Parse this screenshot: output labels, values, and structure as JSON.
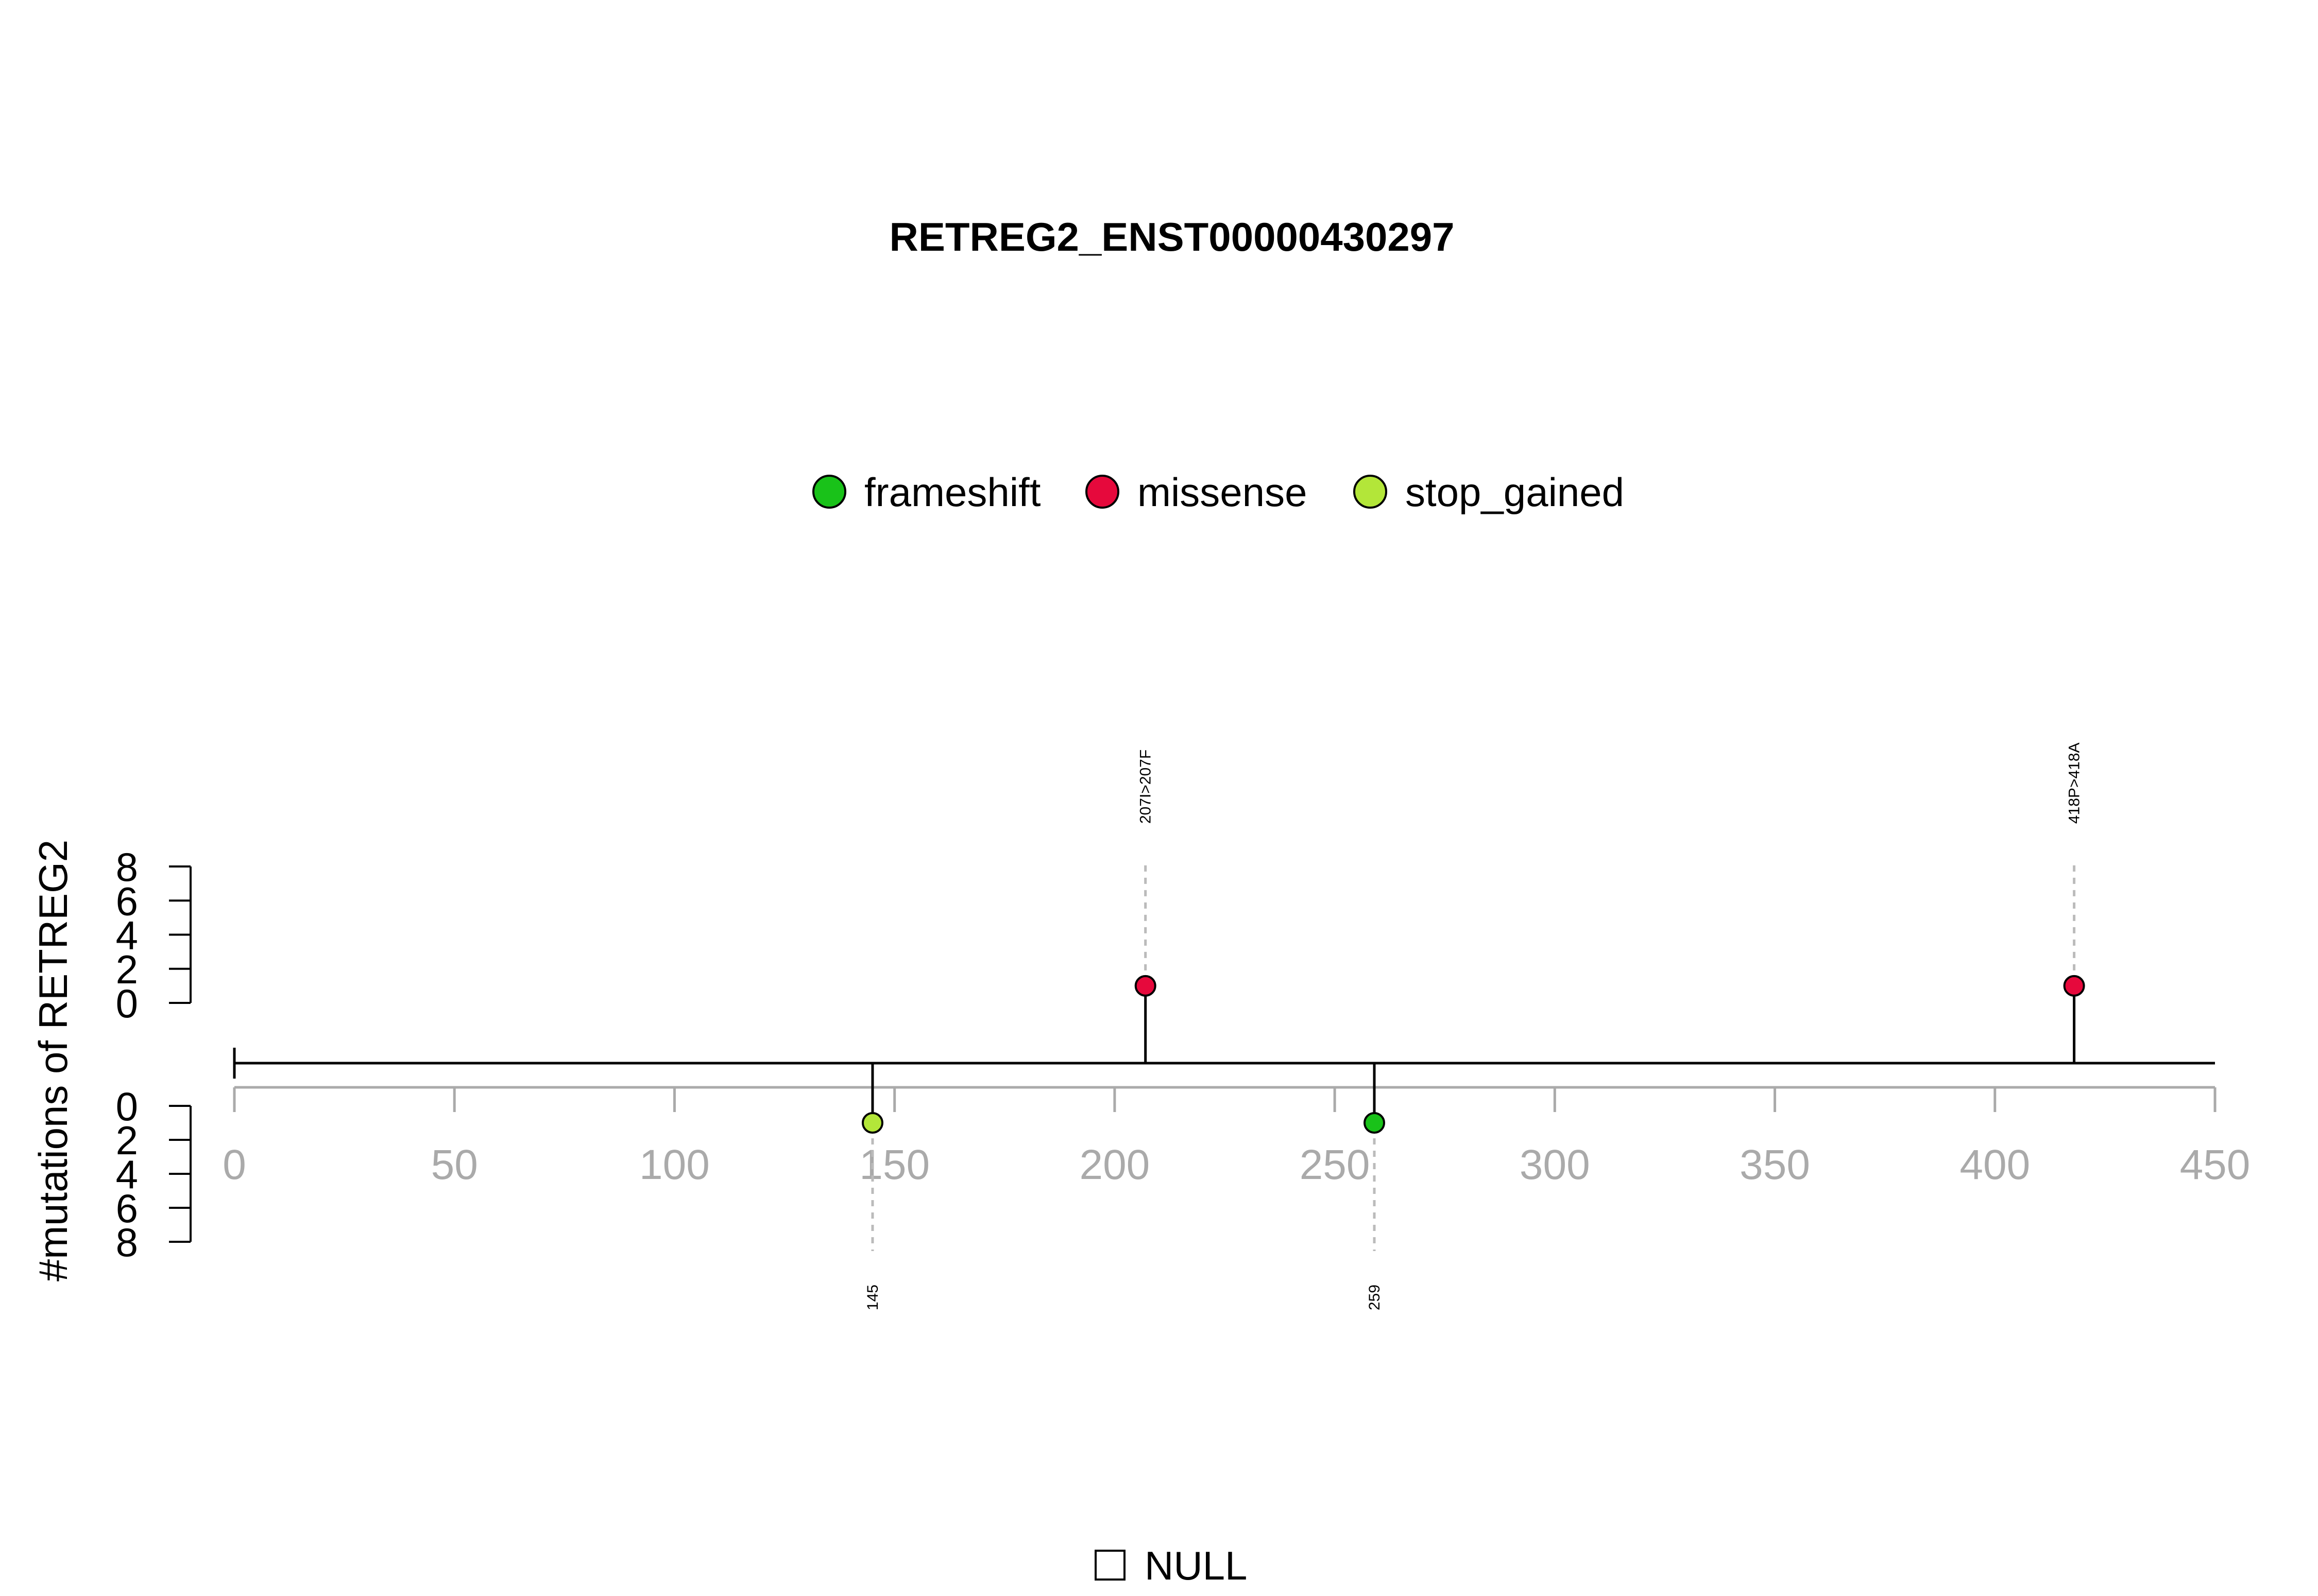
{
  "chart_data": {
    "type": "lollipop",
    "title": "RETREG2_ENST00000430297",
    "ylabel": "#mutations of RETREG2",
    "x_range": [
      0,
      450
    ],
    "x_ticks": [
      "0",
      "50",
      "100",
      "150",
      "200",
      "250",
      "300",
      "350",
      "400",
      "450"
    ],
    "y_range": [
      0,
      8
    ],
    "y_ticks": [
      "0",
      "2",
      "4",
      "6",
      "8"
    ],
    "protein_length": 450,
    "legend": [
      {
        "label": "frameshift",
        "color": "#19c219"
      },
      {
        "label": "missense",
        "color": "#e6093c"
      },
      {
        "label": "stop_gained",
        "color": "#b3e639"
      }
    ],
    "mutations": [
      {
        "position": 207,
        "count": 1,
        "type": "missense",
        "color": "#e6093c",
        "side": "top",
        "label": "207I>207F"
      },
      {
        "position": 418,
        "count": 1,
        "type": "missense",
        "color": "#e6093c",
        "side": "top",
        "label": "418P>418A"
      },
      {
        "position": 145,
        "count": 1,
        "type": "stop_gained",
        "color": "#b3e639",
        "side": "bottom",
        "label": "145"
      },
      {
        "position": 259,
        "count": 1,
        "type": "frameshift",
        "color": "#19c219",
        "side": "bottom",
        "label": "259"
      }
    ],
    "domain_legend": [
      {
        "label": "NULL"
      }
    ]
  }
}
